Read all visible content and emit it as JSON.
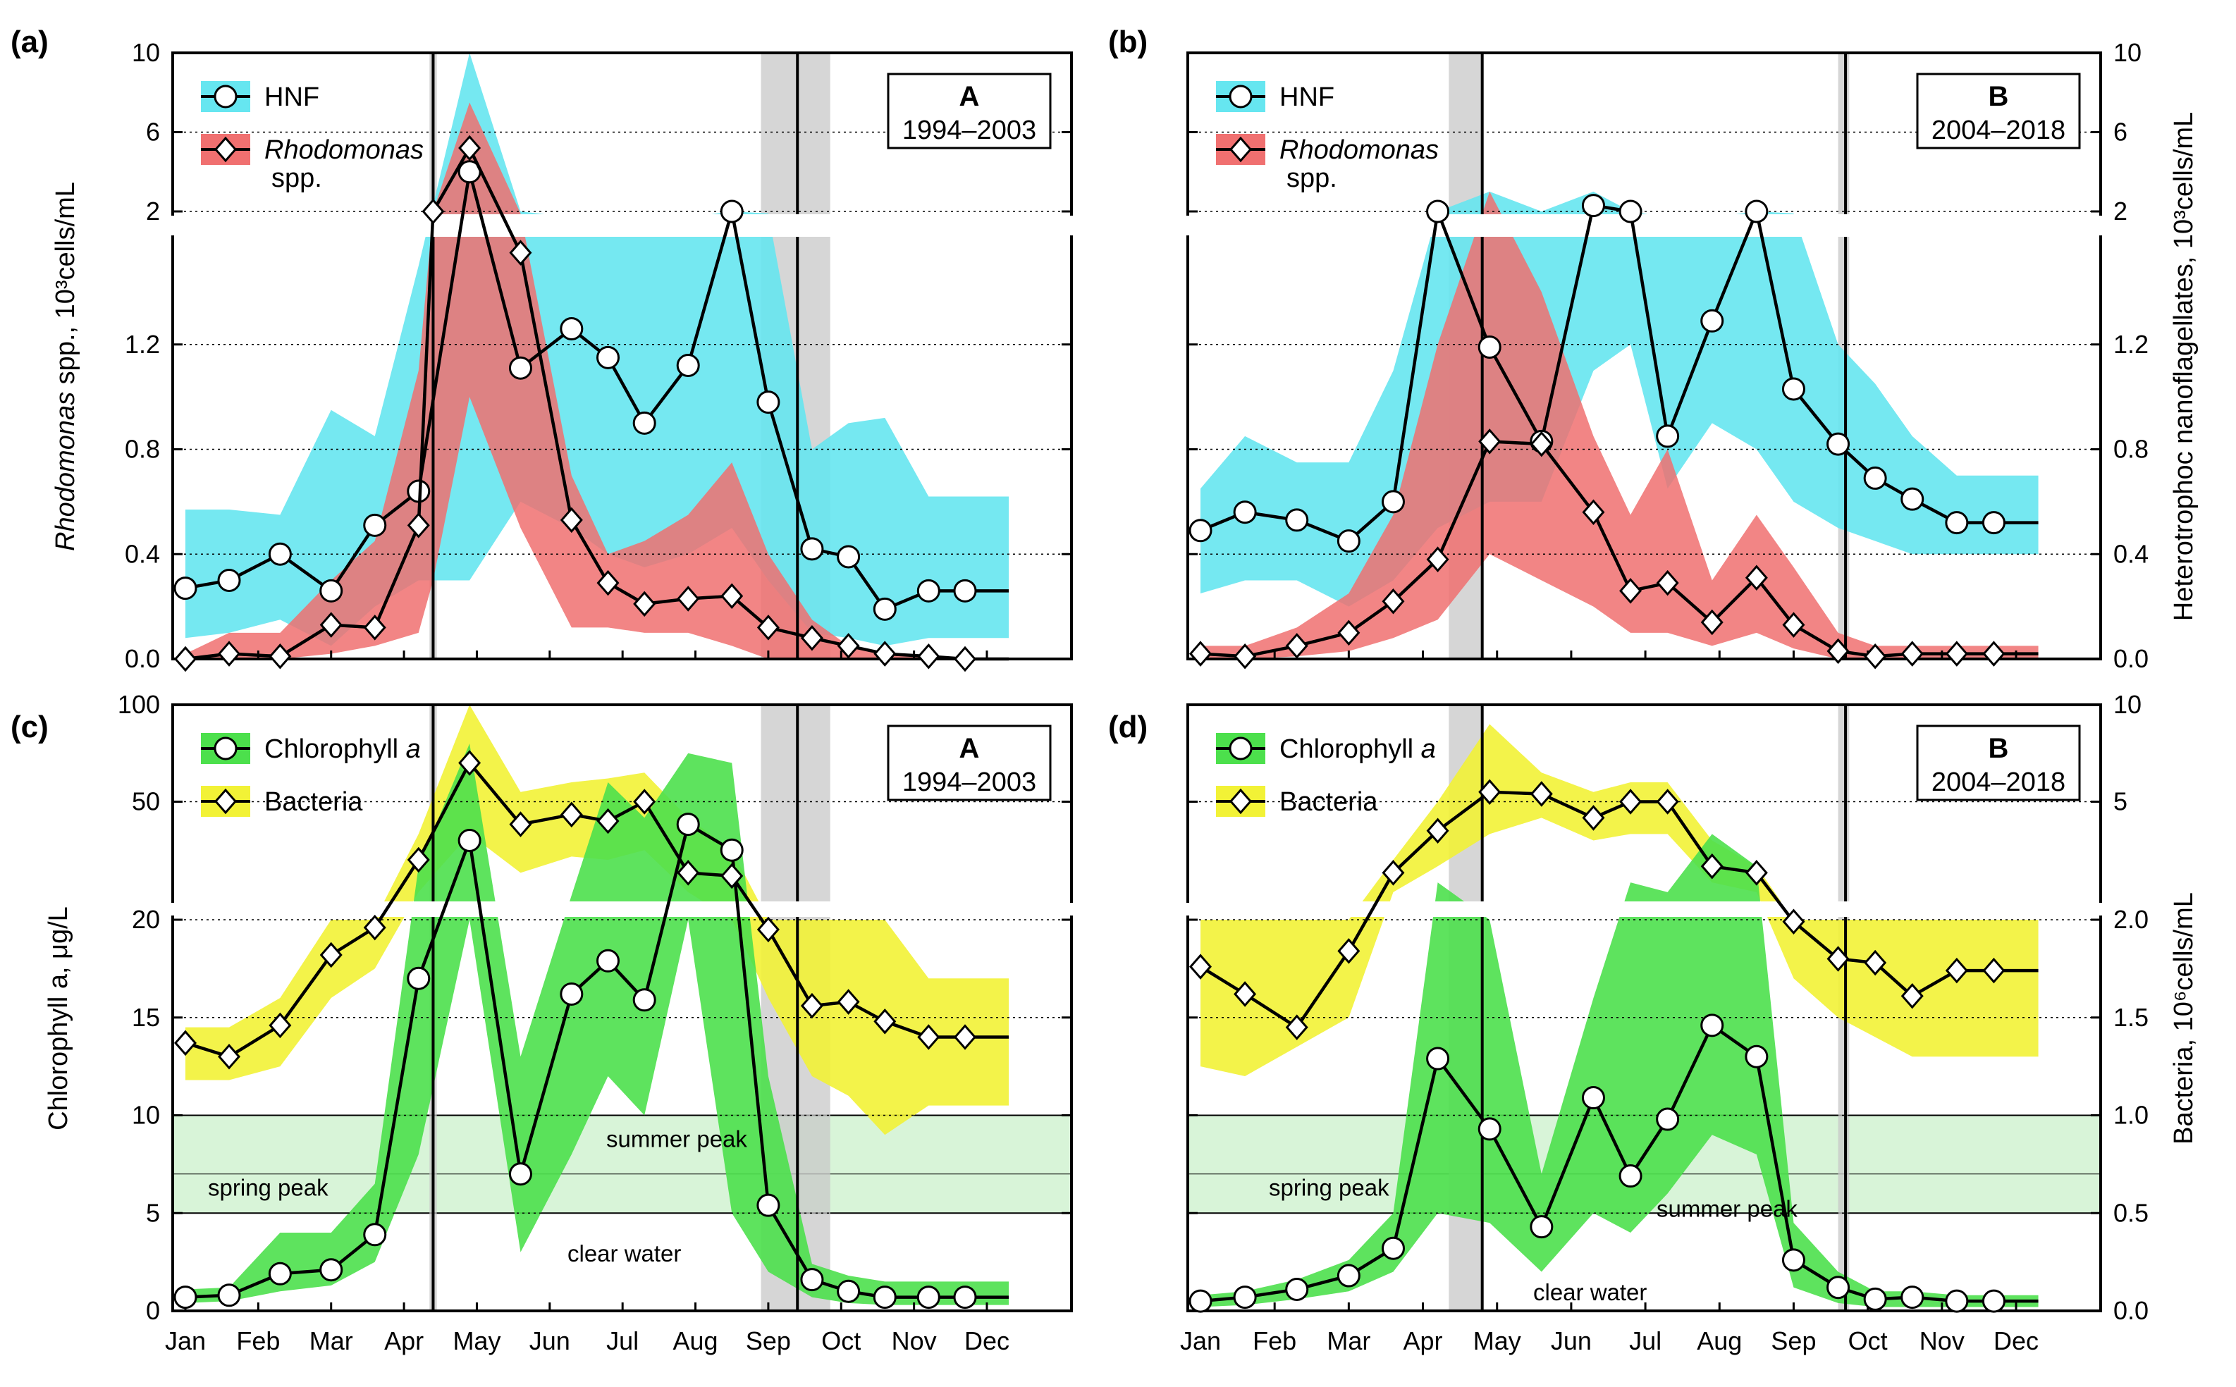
{
  "months": [
    "Jan",
    "Feb",
    "Mar",
    "Apr",
    "May",
    "Jun",
    "Jul",
    "Aug",
    "Sep",
    "Oct",
    "Nov",
    "Dec"
  ],
  "colors": {
    "hnf_band": "#66E6F0",
    "rhodo_band": "#F07070",
    "chl_band": "#4CE04C",
    "bact_band": "#F2F236",
    "overlap_band": "#A4605C",
    "ref_band": "#D8F4D8",
    "grey_band": "#C8C8C8"
  },
  "chart_data": [
    {
      "panel": "(a)",
      "type": "line",
      "box_label": "A",
      "box_years": "1994–2003",
      "left_axis_label": "spp., 10³cells/mL",
      "left_axis_label_italic": "Rhodomonas",
      "upper_ticks": [
        "2",
        "6",
        "10"
      ],
      "lower_ticks": [
        "0.0",
        "0.4",
        "0.8",
        "1.2"
      ],
      "legend": [
        {
          "name": "HNF"
        },
        {
          "name": "Rhodomonas",
          "suffix": "spp."
        }
      ],
      "series": [
        {
          "name": "HNF",
          "marker": "circle",
          "x": [
            1,
            1.6,
            2.3,
            3.0,
            3.6,
            4.2,
            4.9,
            5.6,
            6.3,
            6.8,
            7.3,
            7.9,
            8.5,
            9.0,
            9.6,
            10.1,
            10.6,
            11.2,
            11.7,
            12.3
          ],
          "y": [
            0.27,
            0.3,
            0.4,
            0.26,
            0.51,
            0.64,
            4.0,
            1.11,
            1.26,
            1.15,
            0.9,
            1.12,
            2.0,
            0.98,
            0.42,
            0.39,
            0.19,
            0.26,
            0.26,
            0.26
          ],
          "band_lo": [
            0.08,
            0.1,
            0.15,
            0.05,
            0.2,
            0.3,
            0.3,
            0.6,
            0.5,
            0.4,
            0.35,
            0.4,
            0.5,
            0.3,
            0.1,
            0.08,
            0.05,
            0.08,
            0.08,
            0.08
          ],
          "band_hi": [
            0.57,
            0.57,
            0.55,
            0.95,
            0.85,
            1.5,
            10.0,
            2.0,
            1.7,
            1.7,
            1.7,
            1.7,
            2.0,
            1.9,
            0.8,
            0.9,
            0.92,
            0.62,
            0.62,
            0.62
          ]
        },
        {
          "name": "Rhodomonas spp.",
          "marker": "diamond",
          "x": [
            1,
            1.6,
            2.3,
            3.0,
            3.6,
            4.2,
            4.4,
            4.9,
            5.6,
            6.3,
            6.8,
            7.3,
            7.9,
            8.5,
            9.0,
            9.6,
            10.1,
            10.6,
            11.2,
            11.7,
            12.3
          ],
          "y": [
            0.0,
            0.02,
            0.01,
            0.13,
            0.12,
            0.51,
            2.0,
            5.2,
            1.55,
            0.53,
            0.29,
            0.21,
            0.23,
            0.24,
            0.12,
            0.08,
            0.05,
            0.02,
            0.01,
            0.0,
            0.0
          ],
          "band_lo": [
            0.0,
            0.0,
            0.0,
            0.02,
            0.05,
            0.1,
            0.3,
            1.0,
            0.5,
            0.12,
            0.12,
            0.1,
            0.1,
            0.05,
            0.0,
            0.0,
            0.0,
            0.0,
            0.0,
            0.0,
            0.0
          ],
          "band_hi": [
            0.02,
            0.1,
            0.1,
            0.3,
            0.45,
            1.1,
            2.0,
            7.5,
            1.9,
            0.7,
            0.4,
            0.45,
            0.55,
            0.75,
            0.4,
            0.15,
            0.05,
            0.02,
            0.01,
            0.0,
            0.0
          ]
        }
      ],
      "vlines": [
        4.4,
        9.4
      ],
      "grey_bands": [
        [
          4.35,
          4.45
        ],
        [
          8.9,
          9.85
        ]
      ]
    },
    {
      "panel": "(b)",
      "type": "line",
      "box_label": "B",
      "box_years": "2004–2018",
      "right_axis_label": "Heterotrophoc nanoflagellates, 10³cells/mL",
      "upper_ticks": [
        "2",
        "6",
        "10"
      ],
      "lower_ticks": [
        "0.0",
        "0.4",
        "0.8",
        "1.2"
      ],
      "legend": [
        {
          "name": "HNF"
        },
        {
          "name": "Rhodomonas",
          "suffix": "spp."
        }
      ],
      "series": [
        {
          "name": "HNF",
          "marker": "circle",
          "x": [
            1,
            1.6,
            2.3,
            3.0,
            3.6,
            4.2,
            4.9,
            5.6,
            6.3,
            6.8,
            7.3,
            7.9,
            8.5,
            9.0,
            9.6,
            10.1,
            10.6,
            11.2,
            11.7,
            12.3
          ],
          "y": [
            0.49,
            0.56,
            0.53,
            0.45,
            0.6,
            2.0,
            1.19,
            0.83,
            2.3,
            2.0,
            0.85,
            1.29,
            2.0,
            1.03,
            0.82,
            0.69,
            0.61,
            0.52,
            0.52,
            0.52
          ],
          "band_lo": [
            0.25,
            0.3,
            0.3,
            0.2,
            0.3,
            0.5,
            0.6,
            0.6,
            1.1,
            1.2,
            0.65,
            0.9,
            0.8,
            0.6,
            0.5,
            0.45,
            0.4,
            0.4,
            0.4,
            0.4
          ],
          "band_hi": [
            0.65,
            0.85,
            0.75,
            0.75,
            1.1,
            2.0,
            3.0,
            2.0,
            3.0,
            2.0,
            1.7,
            1.7,
            2.0,
            1.9,
            1.2,
            1.05,
            0.85,
            0.7,
            0.7,
            0.7
          ]
        },
        {
          "name": "Rhodomonas spp.",
          "marker": "diamond",
          "x": [
            1,
            1.6,
            2.3,
            3.0,
            3.6,
            4.2,
            4.9,
            5.6,
            6.3,
            6.8,
            7.3,
            7.9,
            8.5,
            9.0,
            9.6,
            10.1,
            10.6,
            11.2,
            11.7,
            12.3
          ],
          "y": [
            0.02,
            0.01,
            0.05,
            0.1,
            0.22,
            0.38,
            0.83,
            0.82,
            0.56,
            0.26,
            0.29,
            0.14,
            0.31,
            0.13,
            0.03,
            0.01,
            0.02,
            0.02,
            0.02,
            0.02
          ],
          "band_lo": [
            0.0,
            0.0,
            0.01,
            0.03,
            0.08,
            0.15,
            0.4,
            0.3,
            0.2,
            0.1,
            0.1,
            0.05,
            0.1,
            0.04,
            0.0,
            0.0,
            0.0,
            0.0,
            0.0,
            0.0
          ],
          "band_hi": [
            0.05,
            0.05,
            0.12,
            0.25,
            0.55,
            1.2,
            3.0,
            1.4,
            0.85,
            0.55,
            0.8,
            0.3,
            0.55,
            0.35,
            0.1,
            0.05,
            0.05,
            0.05,
            0.05,
            0.05
          ]
        }
      ],
      "vlines": [
        4.8,
        9.7
      ],
      "grey_bands": [
        [
          4.35,
          4.8
        ],
        [
          9.6,
          9.75
        ]
      ]
    },
    {
      "panel": "(c)",
      "type": "line",
      "box_label": "A",
      "box_years": "1994–2003",
      "left_axis_label": "Chlorophyll a, μg/L",
      "upper_ticks": [
        "20",
        "50",
        "100"
      ],
      "lower_ticks": [
        "0",
        "5",
        "10",
        "15"
      ],
      "legend": [
        {
          "name": "Chlorophyll",
          "suffix": "a"
        },
        {
          "name": "Bacteria"
        }
      ],
      "annotations": [
        "spring peak",
        "summer peak",
        "clear water"
      ],
      "series": [
        {
          "name": "Chlorophyll a",
          "marker": "circle",
          "x": [
            1,
            1.6,
            2.3,
            3.0,
            3.6,
            4.2,
            4.9,
            5.6,
            6.3,
            6.8,
            7.3,
            7.9,
            8.5,
            9.0,
            9.6,
            10.1,
            10.6,
            11.2,
            11.7,
            12.3
          ],
          "y": [
            0.7,
            0.8,
            1.9,
            2.1,
            3.9,
            17.0,
            38.0,
            7.0,
            16.2,
            17.9,
            15.9,
            43.0,
            35.0,
            5.4,
            1.6,
            1.0,
            0.7,
            0.7,
            0.7,
            0.7
          ],
          "band_lo": [
            0.4,
            0.5,
            1.0,
            1.3,
            2.5,
            8.0,
            20.0,
            3.0,
            8.0,
            12.0,
            10.0,
            20.0,
            5.0,
            2.0,
            0.7,
            0.4,
            0.3,
            0.3,
            0.3,
            0.3
          ],
          "band_hi": [
            1.1,
            1.2,
            4.0,
            4.0,
            6.5,
            30.0,
            80.0,
            13.0,
            21.0,
            60.0,
            45.0,
            75.0,
            70.0,
            12.0,
            2.4,
            1.8,
            1.5,
            1.5,
            1.5,
            1.5
          ]
        },
        {
          "name": "Bacteria",
          "marker": "diamond",
          "x": [
            1,
            1.6,
            2.3,
            3.0,
            3.6,
            4.2,
            4.9,
            5.6,
            6.3,
            6.8,
            7.3,
            7.9,
            8.5,
            9.0,
            9.6,
            10.1,
            10.6,
            11.2,
            11.7,
            12.3
          ],
          "y": [
            13.7,
            13.0,
            14.6,
            18.2,
            19.6,
            32.0,
            70.0,
            43.0,
            46.0,
            44.0,
            50.0,
            28.0,
            27.0,
            19.5,
            15.6,
            15.8,
            14.8,
            14.0,
            14.0,
            14.0
          ],
          "band_lo": [
            11.8,
            11.8,
            12.5,
            16.0,
            17.5,
            22.0,
            40.0,
            28.0,
            33.0,
            32.0,
            35.0,
            22.0,
            20.0,
            16.0,
            12.0,
            11.0,
            9.0,
            10.5,
            10.5,
            10.5
          ],
          "band_hi": [
            14.5,
            14.5,
            16.0,
            20.0,
            20.0,
            40.0,
            100.0,
            55.0,
            60.0,
            62.0,
            65.0,
            45.0,
            35.0,
            20.0,
            20.0,
            20.0,
            20.0,
            17.0,
            17.0,
            17.0
          ]
        }
      ],
      "vlines": [
        4.4,
        9.4
      ],
      "grey_bands": [
        [
          4.35,
          4.45
        ],
        [
          8.9,
          9.85
        ]
      ]
    },
    {
      "panel": "(d)",
      "type": "line",
      "box_label": "B",
      "box_years": "2004–2018",
      "right_axis_label": "Bacteria, 10⁶cells/mL",
      "upper_ticks": [
        "2.0",
        "5",
        "10"
      ],
      "lower_ticks": [
        "0.0",
        "0.5",
        "1.0",
        "1.5"
      ],
      "legend": [
        {
          "name": "Chlorophyll",
          "suffix": "a"
        },
        {
          "name": "Bacteria"
        }
      ],
      "annotations": [
        "spring peak",
        "summer peak",
        "clear water"
      ],
      "series": [
        {
          "name": "Chlorophyll a",
          "marker": "circle",
          "x": [
            1,
            1.6,
            2.3,
            3.0,
            3.6,
            4.2,
            4.9,
            5.6,
            6.3,
            6.8,
            7.3,
            7.9,
            8.5,
            9.0,
            9.6,
            10.1,
            10.6,
            11.2,
            11.7,
            12.3
          ],
          "y": [
            0.5,
            0.7,
            1.1,
            1.8,
            3.2,
            12.9,
            9.3,
            4.3,
            10.9,
            6.9,
            9.8,
            14.6,
            13.0,
            2.6,
            1.2,
            0.6,
            0.7,
            0.5,
            0.5,
            0.5
          ],
          "band_lo": [
            0.2,
            0.3,
            0.6,
            1.0,
            2.0,
            5.0,
            4.5,
            2.0,
            5.0,
            4.0,
            6.0,
            9.0,
            8.0,
            1.2,
            0.4,
            0.2,
            0.2,
            0.2,
            0.2,
            0.2
          ],
          "band_hi": [
            0.8,
            1.0,
            1.6,
            2.6,
            5.0,
            25.0,
            20.0,
            7.0,
            16.0,
            25.0,
            22.0,
            40.0,
            30.0,
            4.5,
            2.0,
            1.0,
            1.0,
            0.8,
            0.8,
            0.8
          ]
        },
        {
          "name": "Bacteria",
          "marker": "diamond",
          "x": [
            1,
            1.6,
            2.3,
            3.0,
            3.6,
            4.2,
            4.9,
            5.6,
            6.3,
            6.8,
            7.3,
            7.9,
            8.5,
            9.0,
            9.6,
            10.1,
            10.6,
            11.2,
            11.7,
            12.3
          ],
          "y": [
            17.6,
            16.2,
            14.5,
            18.4,
            28.0,
            41.0,
            55.0,
            54.0,
            45.0,
            50.0,
            50.0,
            30.0,
            28.0,
            19.9,
            18.0,
            17.8,
            16.1,
            17.4,
            17.4,
            17.4
          ],
          "band_lo": [
            12.5,
            12.0,
            13.5,
            15.0,
            22.0,
            30.0,
            40.0,
            45.0,
            38.0,
            40.0,
            40.0,
            25.0,
            22.0,
            17.0,
            15.0,
            14.0,
            13.0,
            13.0,
            13.0,
            13.0
          ],
          "band_hi": [
            20.0,
            20.0,
            20.0,
            20.0,
            32.0,
            50.0,
            90.0,
            65.0,
            55.0,
            60.0,
            60.0,
            38.0,
            30.0,
            20.0,
            20.0,
            20.0,
            20.0,
            20.0,
            20.0,
            20.0
          ]
        }
      ],
      "vlines": [
        4.8,
        9.7
      ],
      "grey_bands": [
        [
          4.35,
          4.8
        ],
        [
          9.6,
          9.75
        ]
      ]
    }
  ]
}
